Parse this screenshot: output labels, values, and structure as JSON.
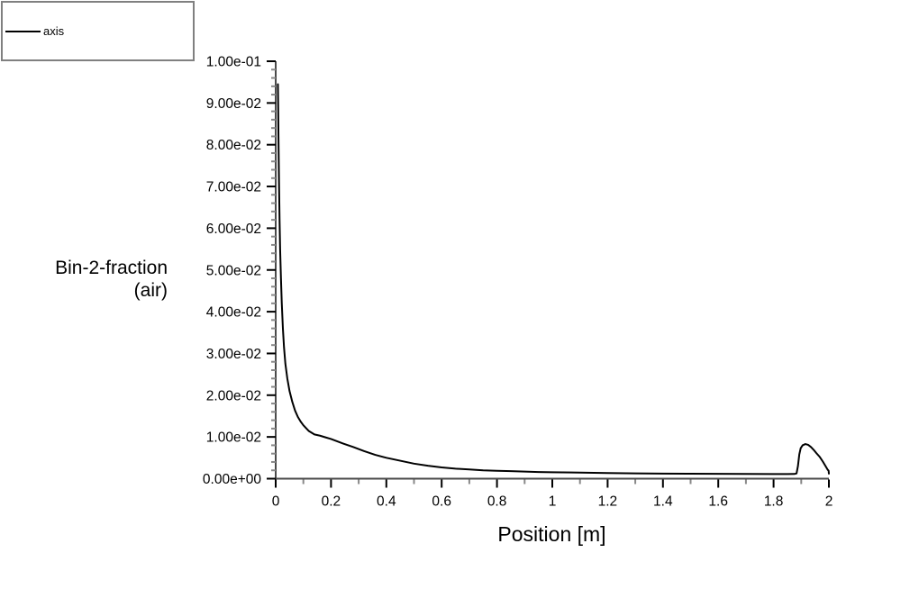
{
  "legend": {
    "series_label": "axis",
    "line_color": "#000000",
    "border_color": "#808080"
  },
  "axis_titles": {
    "y_line1": "Bin-2-fraction",
    "y_line2": "(air)",
    "x": "Position [m]"
  },
  "colors": {
    "background": "#ffffff",
    "axis_line": "#4a4a4a",
    "major_tick": "#000000",
    "minor_tick": "#888888",
    "curve": "#000000",
    "text": "#000000"
  },
  "chart_data": {
    "type": "line",
    "title": "",
    "xlabel": "Position [m]",
    "ylabel": "Bin-2-fraction (air)",
    "xlim": [
      0,
      2
    ],
    "ylim": [
      0,
      0.1
    ],
    "x_major_step": 0.2,
    "x_minor_step": 0.1,
    "y_major_step": 0.01,
    "y_minor_step": 0.002,
    "grid": false,
    "legend_position": "top-left",
    "x_tick_labels": [
      "0",
      "0.2",
      "0.4",
      "0.6",
      "0.8",
      "1",
      "1.2",
      "1.4",
      "1.6",
      "1.8",
      "2"
    ],
    "y_tick_labels": [
      "1.00e-01",
      "9.00e-02",
      "8.00e-02",
      "7.00e-02",
      "6.00e-02",
      "5.00e-02",
      "4.00e-02",
      "3.00e-02",
      "2.00e-02",
      "1.00e-02",
      "0.00e+00"
    ],
    "series": [
      {
        "name": "axis",
        "color": "#000000",
        "points": [
          [
            0.008,
            0.0945
          ],
          [
            0.009,
            0.089
          ],
          [
            0.01,
            0.082
          ],
          [
            0.012,
            0.071
          ],
          [
            0.014,
            0.062
          ],
          [
            0.016,
            0.055
          ],
          [
            0.019,
            0.048
          ],
          [
            0.022,
            0.042
          ],
          [
            0.026,
            0.036
          ],
          [
            0.03,
            0.0315
          ],
          [
            0.035,
            0.0275
          ],
          [
            0.042,
            0.024
          ],
          [
            0.05,
            0.021
          ],
          [
            0.06,
            0.0184
          ],
          [
            0.07,
            0.0163
          ],
          [
            0.08,
            0.0148
          ],
          [
            0.09,
            0.0137
          ],
          [
            0.1,
            0.0128
          ],
          [
            0.12,
            0.0114
          ],
          [
            0.14,
            0.0106
          ],
          [
            0.16,
            0.0103
          ],
          [
            0.18,
            0.0099
          ],
          [
            0.2,
            0.0095
          ],
          [
            0.24,
            0.0085
          ],
          [
            0.28,
            0.0076
          ],
          [
            0.32,
            0.0066
          ],
          [
            0.36,
            0.0057
          ],
          [
            0.4,
            0.005
          ],
          [
            0.45,
            0.0043
          ],
          [
            0.5,
            0.0036
          ],
          [
            0.55,
            0.0031
          ],
          [
            0.6,
            0.0027
          ],
          [
            0.65,
            0.0024
          ],
          [
            0.7,
            0.0022
          ],
          [
            0.75,
            0.002
          ],
          [
            0.8,
            0.0019
          ],
          [
            0.85,
            0.0018
          ],
          [
            0.9,
            0.0017
          ],
          [
            0.95,
            0.0016
          ],
          [
            1.0,
            0.00155
          ],
          [
            1.1,
            0.00145
          ],
          [
            1.2,
            0.00135
          ],
          [
            1.3,
            0.00128
          ],
          [
            1.4,
            0.00122
          ],
          [
            1.5,
            0.00118
          ],
          [
            1.6,
            0.00115
          ],
          [
            1.7,
            0.00112
          ],
          [
            1.8,
            0.0011
          ],
          [
            1.85,
            0.0011
          ],
          [
            1.875,
            0.00112
          ],
          [
            1.883,
            0.00125
          ],
          [
            1.888,
            0.003
          ],
          [
            1.893,
            0.0058
          ],
          [
            1.898,
            0.0073
          ],
          [
            1.905,
            0.008
          ],
          [
            1.915,
            0.0083
          ],
          [
            1.925,
            0.0081
          ],
          [
            1.935,
            0.0076
          ],
          [
            1.945,
            0.0069
          ],
          [
            1.955,
            0.0061
          ],
          [
            1.967,
            0.0052
          ],
          [
            1.978,
            0.0041
          ],
          [
            1.988,
            0.003
          ],
          [
            1.995,
            0.0022
          ],
          [
            1.999,
            0.0019
          ],
          [
            2.0,
            0.0012
          ]
        ]
      }
    ]
  }
}
